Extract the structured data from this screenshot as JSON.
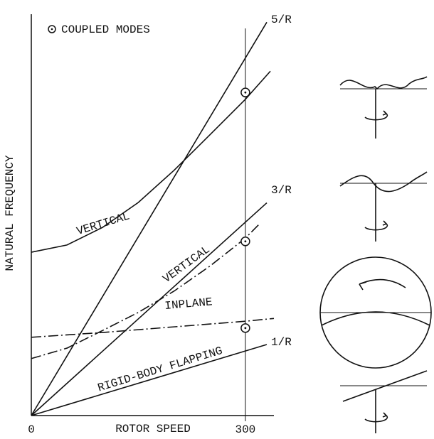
{
  "chart_data": {
    "type": "line",
    "x_label": "ROTOR SPEED",
    "y_label": "NATURAL FREQUENCY",
    "xlim": [
      0,
      340
    ],
    "ylim": [
      0,
      100
    ],
    "xticks": [
      0,
      300
    ],
    "annotation": "RIGID-BODY FLAPPING",
    "coupled_modes": {
      "label": "COUPLED MODES",
      "x": [
        300,
        300,
        300
      ],
      "y": [
        80.5,
        43.4,
        21.8
      ]
    },
    "series": [
      {
        "name": "5/R",
        "color": "#111111",
        "style": "solid",
        "x": [
          0,
          330
        ],
        "values": [
          0,
          98
        ]
      },
      {
        "name": "3/R",
        "color": "#111111",
        "style": "solid",
        "x": [
          0,
          330
        ],
        "values": [
          0,
          53
        ]
      },
      {
        "name": "1/R",
        "color": "#111111",
        "style": "solid",
        "x": [
          0,
          330
        ],
        "values": [
          0,
          17.7
        ]
      },
      {
        "name": "VERTICAL",
        "color": "#111111",
        "style": "solid",
        "x": [
          0,
          50,
          100,
          150,
          200,
          250,
          300,
          335
        ],
        "values": [
          40.7,
          42.5,
          46.9,
          53.1,
          61.1,
          69.9,
          78.8,
          85.8
        ]
      },
      {
        "name": "VERTICAL",
        "color": "#111111",
        "style": "dashdot",
        "x": [
          0,
          50,
          100,
          150,
          200,
          250,
          300,
          320
        ],
        "values": [
          14.2,
          16.8,
          21.2,
          25.7,
          31.0,
          37.2,
          44.2,
          47.8
        ]
      },
      {
        "name": "INPLANE",
        "color": "#111111",
        "style": "dashdot",
        "x": [
          0,
          100,
          200,
          300,
          340
        ],
        "values": [
          19.5,
          20.7,
          22.1,
          23.5,
          24.2
        ]
      }
    ]
  }
}
